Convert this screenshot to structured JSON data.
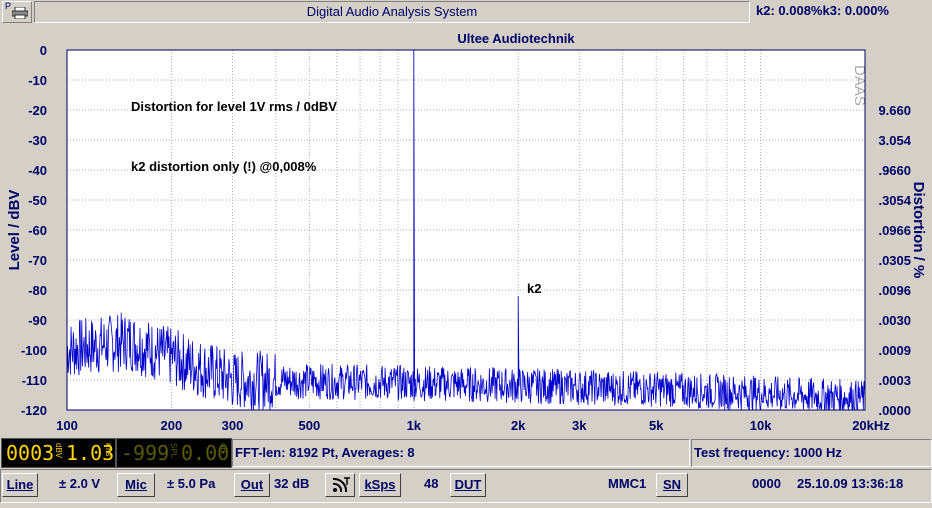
{
  "window": {
    "title": "Digital Audio Analysis System",
    "print_letter": "P",
    "k_readout": "k2: 0.008%k3: 0.000%"
  },
  "plot": {
    "title": "Ultee Audiotechnik",
    "y_left_label": "Level / dBV",
    "y_right_label": "Distortion / %",
    "watermark": "DAAS",
    "annotation_1": "Distortion for level 1V rms / 0dBV",
    "annotation_2": "k2 distortion only (!) @0,008%",
    "peak_label": "k2",
    "y_left_ticks": [
      "0",
      "-10",
      "-20",
      "-30",
      "-40",
      "-50",
      "-60",
      "-70",
      "-80",
      "-90",
      "-100",
      "-110",
      "-120"
    ],
    "y_right_ticks": [
      "9.660",
      "3.054",
      ".9660",
      ".3054",
      ".0966",
      ".0305",
      ".0096",
      ".0030",
      ".0009",
      ".0003",
      ".0000"
    ],
    "x_ticks": [
      "100",
      "200",
      "300",
      "500",
      "1k",
      "2k",
      "3k",
      "5k",
      "10k",
      "20kHz"
    ]
  },
  "chart_data": {
    "type": "line",
    "title": "Ultee Audiotechnik",
    "xlabel": "",
    "ylabel": "Level / dBV",
    "y2label": "Distortion / %",
    "x_scale": "log",
    "xlim": [
      100,
      20000
    ],
    "ylim": [
      -120,
      0
    ],
    "grid": true,
    "peaks": [
      {
        "x": 1000,
        "y": 0
      },
      {
        "x": 2000,
        "y": -82
      }
    ],
    "noise_floor_approx": [
      {
        "x": 100,
        "y": -100
      },
      {
        "x": 150,
        "y": -97
      },
      {
        "x": 300,
        "y": -110
      },
      {
        "x": 1000,
        "y": -111
      },
      {
        "x": 5000,
        "y": -113
      },
      {
        "x": 20000,
        "y": -116
      }
    ]
  },
  "status": {
    "led_level": "0003",
    "led_level_unit": "dBV",
    "led_rms": "1.03",
    "led_rms_unit": "rms",
    "led_spl": "-999",
    "led_spl_unit": "SPL",
    "led_spl_val": "0.00",
    "led_spl_val_unit": "dB",
    "fft_info": "FFT-len: 8192 Pt, Averages: 8",
    "test_freq": "Test frequency: 1000 Hz"
  },
  "toolbar": {
    "line_btn": "Line",
    "line_val": "± 2.0 V",
    "mic_btn": "Mic",
    "mic_val": "± 5.0 Pa",
    "out_btn": "Out",
    "out_val": "32 dB",
    "ksps_btn": "kSps",
    "ksps_val": "48",
    "dut_btn": "DUT",
    "device": "MMC1",
    "sn_btn": "SN",
    "sn_val": "0000",
    "datetime": "25.10.09 13:36:18"
  }
}
